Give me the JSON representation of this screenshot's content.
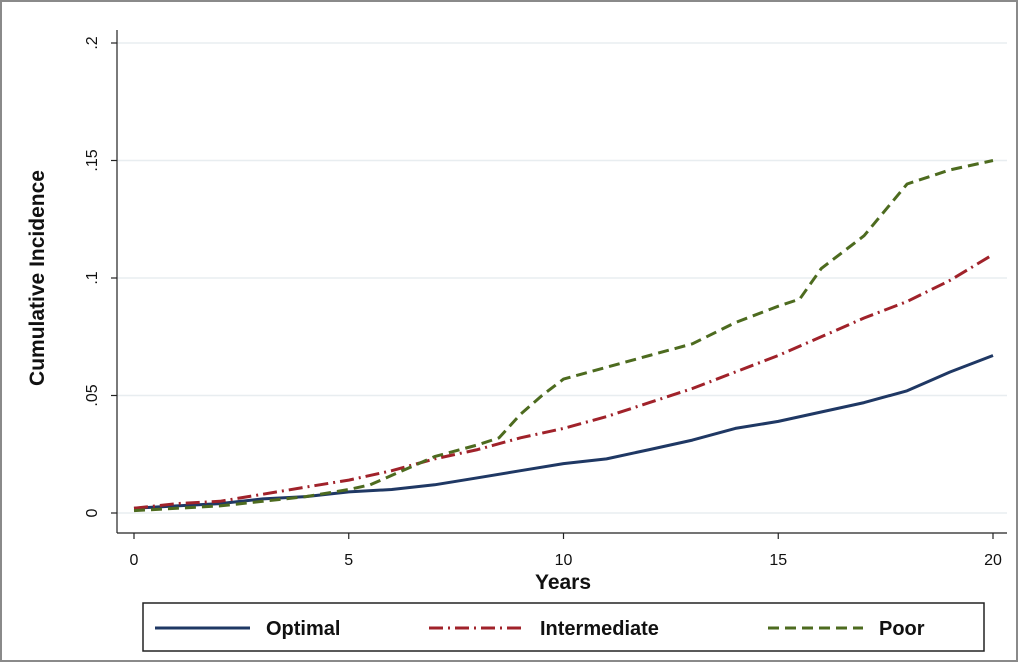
{
  "chart_data": {
    "type": "line",
    "xlabel": "Years",
    "ylabel": "Cumulative Incidence",
    "xlim": [
      0,
      20
    ],
    "ylim": [
      0,
      0.2
    ],
    "x_ticks": [
      0,
      5,
      10,
      15,
      20
    ],
    "x_tick_labels": [
      "0",
      "5",
      "10",
      "15",
      "20"
    ],
    "y_ticks": [
      0,
      0.05,
      0.1,
      0.15,
      0.2
    ],
    "y_tick_labels": [
      "0",
      ".05",
      ".1",
      ".15",
      ".2"
    ],
    "grid": true,
    "legend_position": "bottom",
    "series": [
      {
        "name": "Optimal",
        "color": "#1f3864",
        "dash": "solid",
        "x": [
          0,
          1,
          2,
          3,
          4,
          5,
          6,
          7,
          8,
          9,
          10,
          11,
          12,
          13,
          14,
          15,
          16,
          17,
          18,
          19,
          20
        ],
        "y": [
          0.002,
          0.003,
          0.004,
          0.006,
          0.007,
          0.009,
          0.01,
          0.012,
          0.015,
          0.018,
          0.021,
          0.023,
          0.027,
          0.031,
          0.036,
          0.039,
          0.043,
          0.047,
          0.052,
          0.06,
          0.067
        ]
      },
      {
        "name": "Intermediate",
        "color": "#a0222a",
        "dash": "dashdot",
        "x": [
          0,
          1,
          2,
          3,
          4,
          5,
          6,
          7,
          8,
          9,
          10,
          11,
          12,
          13,
          14,
          15,
          16,
          17,
          18,
          19,
          20
        ],
        "y": [
          0.002,
          0.004,
          0.005,
          0.008,
          0.011,
          0.014,
          0.018,
          0.023,
          0.027,
          0.032,
          0.036,
          0.041,
          0.047,
          0.053,
          0.06,
          0.067,
          0.075,
          0.083,
          0.09,
          0.099,
          0.11
        ]
      },
      {
        "name": "Poor",
        "color": "#4d6b1f",
        "dash": "dashed",
        "x": [
          0,
          1,
          2,
          3,
          4,
          5,
          5.5,
          6,
          7,
          8,
          8.5,
          9,
          9.5,
          10,
          11,
          12,
          13,
          14,
          15,
          15.5,
          16,
          17,
          18,
          19,
          20
        ],
        "y": [
          0.001,
          0.002,
          0.003,
          0.005,
          0.007,
          0.01,
          0.012,
          0.016,
          0.024,
          0.029,
          0.032,
          0.042,
          0.05,
          0.057,
          0.062,
          0.067,
          0.072,
          0.081,
          0.088,
          0.091,
          0.104,
          0.118,
          0.14,
          0.146,
          0.15
        ]
      }
    ]
  }
}
